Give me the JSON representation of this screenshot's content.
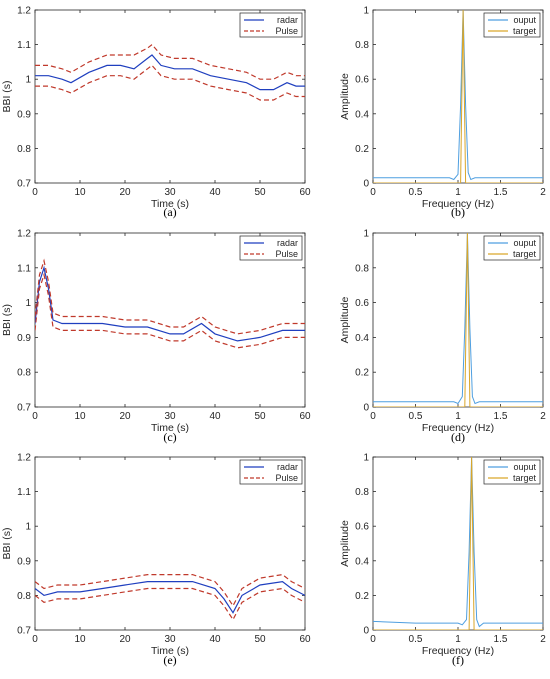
{
  "colors": {
    "radar": "#1f3fbf",
    "pulse": "#c0392b",
    "ouput": "#4f9fe0",
    "target": "#d9a62a",
    "axis": "#262626",
    "background": "#ffffff"
  },
  "captions": [
    "(a)",
    "(b)",
    "(c)",
    "(d)",
    "(e)",
    "(f)"
  ],
  "chart_data": [
    {
      "type": "line",
      "xlabel": "Time (s)",
      "ylabel": "BBI (s)",
      "xlim": [
        0,
        60
      ],
      "ylim": [
        0.7,
        1.2
      ],
      "xticks": [
        0,
        10,
        20,
        30,
        40,
        50,
        60
      ],
      "yticks": [
        0.7,
        0.8,
        0.9,
        1,
        1.1,
        1.2
      ],
      "legend": "top-right",
      "grid": false,
      "x": [
        0,
        3,
        6,
        8,
        12,
        16,
        19,
        22,
        25,
        26,
        28,
        31,
        35,
        39,
        43,
        47,
        50,
        53,
        56,
        58,
        60
      ],
      "series": [
        {
          "name": "radar",
          "style": "solid",
          "values": [
            1.01,
            1.01,
            1.0,
            0.99,
            1.02,
            1.04,
            1.04,
            1.03,
            1.06,
            1.07,
            1.04,
            1.03,
            1.03,
            1.01,
            1.0,
            0.99,
            0.97,
            0.97,
            0.99,
            0.98,
            0.98
          ]
        },
        {
          "name": "Pulse",
          "style": "dashed",
          "values": [
            1.04,
            1.04,
            1.03,
            1.02,
            1.05,
            1.07,
            1.07,
            1.07,
            1.09,
            1.1,
            1.07,
            1.06,
            1.06,
            1.04,
            1.03,
            1.02,
            1.0,
            1.0,
            1.02,
            1.01,
            1.01
          ]
        },
        {
          "name": "Pulse",
          "style": "dashed",
          "values": [
            0.98,
            0.98,
            0.97,
            0.96,
            0.99,
            1.01,
            1.01,
            1.0,
            1.03,
            1.04,
            1.01,
            1.0,
            1.0,
            0.98,
            0.97,
            0.96,
            0.94,
            0.94,
            0.96,
            0.95,
            0.95
          ]
        }
      ]
    },
    {
      "type": "line",
      "xlabel": "Frequency (Hz)",
      "ylabel": "Amplitude",
      "xlim": [
        0,
        2
      ],
      "ylim": [
        0,
        1
      ],
      "xticks": [
        0,
        0.5,
        1,
        1.5,
        2
      ],
      "yticks": [
        0,
        0.2,
        0.4,
        0.6,
        0.8,
        1
      ],
      "legend": "top-right",
      "grid": false,
      "x": [
        0,
        0.5,
        0.9,
        0.95,
        1.0,
        1.03,
        1.06,
        1.09,
        1.12,
        1.15,
        1.2,
        1.5,
        2.0
      ],
      "series": [
        {
          "name": "ouput",
          "values": [
            0.03,
            0.03,
            0.03,
            0.02,
            0.05,
            0.45,
            1.0,
            0.45,
            0.06,
            0.02,
            0.03,
            0.03,
            0.03
          ]
        },
        {
          "name": "target",
          "values": [
            0.0,
            0.0,
            0.0,
            0.0,
            0.0,
            0.0,
            1.0,
            0.0,
            0.0,
            0.0,
            0.0,
            0.0,
            0.0
          ]
        }
      ]
    },
    {
      "type": "line",
      "xlabel": "Time (s)",
      "ylabel": "BBI (s)",
      "xlim": [
        0,
        60
      ],
      "ylim": [
        0.7,
        1.2
      ],
      "xticks": [
        0,
        10,
        20,
        30,
        40,
        50,
        60
      ],
      "yticks": [
        0.7,
        0.8,
        0.9,
        1,
        1.1,
        1.2
      ],
      "legend": "top-right",
      "grid": false,
      "x": [
        0,
        1,
        2,
        3,
        4,
        6,
        10,
        15,
        20,
        25,
        30,
        33,
        37,
        40,
        45,
        50,
        55,
        60
      ],
      "series": [
        {
          "name": "radar",
          "style": "solid",
          "values": [
            0.94,
            1.06,
            1.1,
            1.04,
            0.95,
            0.94,
            0.94,
            0.94,
            0.93,
            0.93,
            0.91,
            0.91,
            0.94,
            0.91,
            0.89,
            0.9,
            0.92,
            0.92
          ]
        },
        {
          "name": "Pulse",
          "style": "dashed",
          "values": [
            0.96,
            1.08,
            1.12,
            1.06,
            0.97,
            0.96,
            0.96,
            0.96,
            0.95,
            0.95,
            0.93,
            0.93,
            0.96,
            0.93,
            0.91,
            0.92,
            0.94,
            0.94
          ]
        },
        {
          "name": "Pulse",
          "style": "dashed",
          "values": [
            0.92,
            1.04,
            1.08,
            1.02,
            0.93,
            0.92,
            0.92,
            0.92,
            0.91,
            0.91,
            0.89,
            0.89,
            0.92,
            0.89,
            0.87,
            0.88,
            0.9,
            0.9
          ]
        }
      ]
    },
    {
      "type": "line",
      "xlabel": "Frequency (Hz)",
      "ylabel": "Amplitude",
      "xlim": [
        0,
        2
      ],
      "ylim": [
        0,
        1
      ],
      "xticks": [
        0,
        0.5,
        1,
        1.5,
        2
      ],
      "yticks": [
        0,
        0.2,
        0.4,
        0.6,
        0.8,
        1
      ],
      "legend": "top-right",
      "grid": false,
      "x": [
        0,
        0.5,
        0.95,
        1.0,
        1.05,
        1.08,
        1.11,
        1.14,
        1.17,
        1.2,
        1.25,
        1.5,
        2.0
      ],
      "series": [
        {
          "name": "ouput",
          "values": [
            0.03,
            0.03,
            0.03,
            0.02,
            0.06,
            0.45,
            1.0,
            0.45,
            0.06,
            0.02,
            0.03,
            0.03,
            0.03
          ]
        },
        {
          "name": "target",
          "values": [
            0.0,
            0.0,
            0.0,
            0.0,
            0.0,
            0.0,
            1.0,
            0.0,
            0.0,
            0.0,
            0.0,
            0.0,
            0.0
          ]
        }
      ]
    },
    {
      "type": "line",
      "xlabel": "Time (s)",
      "ylabel": "BBI (s)",
      "xlim": [
        0,
        60
      ],
      "ylim": [
        0.7,
        1.2
      ],
      "xticks": [
        0,
        10,
        20,
        30,
        40,
        50,
        60
      ],
      "yticks": [
        0.7,
        0.8,
        0.9,
        1,
        1.1,
        1.2
      ],
      "legend": "top-right",
      "grid": false,
      "x": [
        0,
        2,
        5,
        10,
        15,
        20,
        25,
        30,
        35,
        40,
        42,
        44,
        46,
        50,
        55,
        57,
        60
      ],
      "series": [
        {
          "name": "radar",
          "style": "solid",
          "values": [
            0.82,
            0.8,
            0.81,
            0.81,
            0.82,
            0.83,
            0.84,
            0.84,
            0.84,
            0.82,
            0.79,
            0.75,
            0.8,
            0.83,
            0.84,
            0.82,
            0.8
          ]
        },
        {
          "name": "Pulse",
          "style": "dashed",
          "values": [
            0.84,
            0.82,
            0.83,
            0.83,
            0.84,
            0.85,
            0.86,
            0.86,
            0.86,
            0.84,
            0.81,
            0.77,
            0.82,
            0.85,
            0.86,
            0.84,
            0.82
          ]
        },
        {
          "name": "Pulse",
          "style": "dashed",
          "values": [
            0.8,
            0.78,
            0.79,
            0.79,
            0.8,
            0.81,
            0.82,
            0.82,
            0.82,
            0.8,
            0.77,
            0.73,
            0.78,
            0.81,
            0.82,
            0.8,
            0.78
          ]
        }
      ]
    },
    {
      "type": "line",
      "xlabel": "Frequency (Hz)",
      "ylabel": "Amplitude",
      "xlim": [
        0,
        2
      ],
      "ylim": [
        0,
        1
      ],
      "xticks": [
        0,
        0.5,
        1,
        1.5,
        2
      ],
      "yticks": [
        0,
        0.2,
        0.4,
        0.6,
        0.8,
        1
      ],
      "legend": "top-right",
      "grid": false,
      "x": [
        0,
        0.5,
        1.0,
        1.05,
        1.1,
        1.13,
        1.16,
        1.19,
        1.22,
        1.25,
        1.3,
        1.5,
        2.0
      ],
      "series": [
        {
          "name": "ouput",
          "values": [
            0.05,
            0.04,
            0.04,
            0.03,
            0.06,
            0.45,
            1.0,
            0.45,
            0.06,
            0.02,
            0.04,
            0.04,
            0.04
          ]
        },
        {
          "name": "target",
          "values": [
            0.0,
            0.0,
            0.0,
            0.0,
            0.0,
            0.0,
            1.0,
            0.0,
            0.0,
            0.0,
            0.0,
            0.0,
            0.0
          ]
        }
      ]
    }
  ]
}
